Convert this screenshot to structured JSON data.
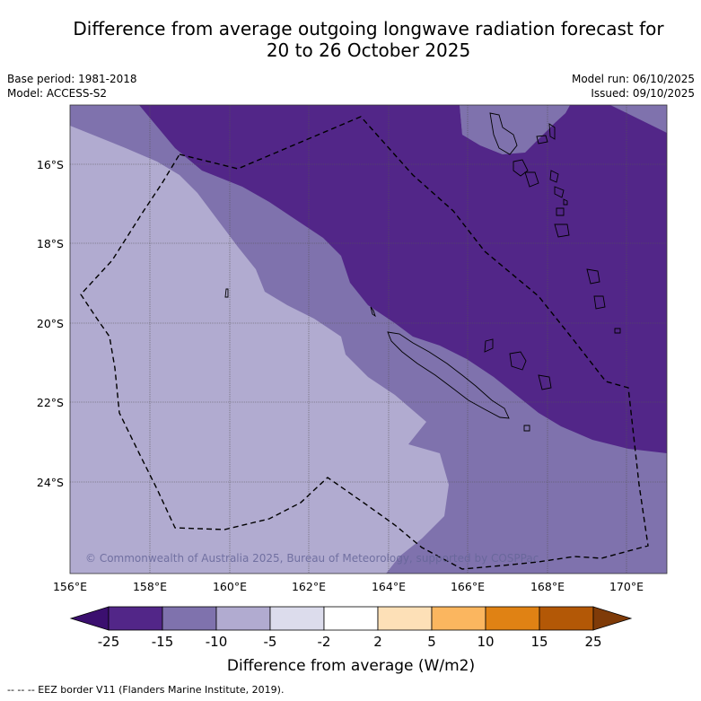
{
  "title": {
    "line1": "Difference from average outgoing longwave radiation forecast for",
    "line2": "20 to 26 October 2025"
  },
  "meta": {
    "base_period": "Base period: 1981-2018",
    "model": "Model: ACCESS-S2",
    "model_run": "Model run: 06/10/2025",
    "issued": "Issued: 09/10/2025"
  },
  "map": {
    "copyright": "© Commonwealth of Australia 2025, Bureau of Meteorology, supported by COSPPac",
    "lon_labels": [
      "156°E",
      "158°E",
      "160°E",
      "162°E",
      "164°E",
      "166°E",
      "168°E",
      "170°E"
    ],
    "lat_labels": [
      "16°S",
      "18°S",
      "20°S",
      "22°S",
      "24°S"
    ],
    "colors": {
      "band_-25_-15": "#522688",
      "band_-15_-10": "#7f72ad",
      "band_-10_-5": "#b1abd0",
      "border": "#000000",
      "grid": "#555555"
    }
  },
  "colorbar": {
    "label": "Difference from average (W/m2)",
    "ticks": [
      "-25",
      "-15",
      "-10",
      "-5",
      "-2",
      "2",
      "5",
      "10",
      "15",
      "25"
    ],
    "colors": [
      "#3b0f6f",
      "#522688",
      "#7f72ad",
      "#b1abd0",
      "#dcdcec",
      "#ffffff",
      "#fde0b7",
      "#fbb65f",
      "#e08214",
      "#b35806",
      "#7f3b08"
    ]
  },
  "footer": {
    "legend": "--  --  -- EEZ border V11 (Flanders Marine Institute, 2019)."
  }
}
